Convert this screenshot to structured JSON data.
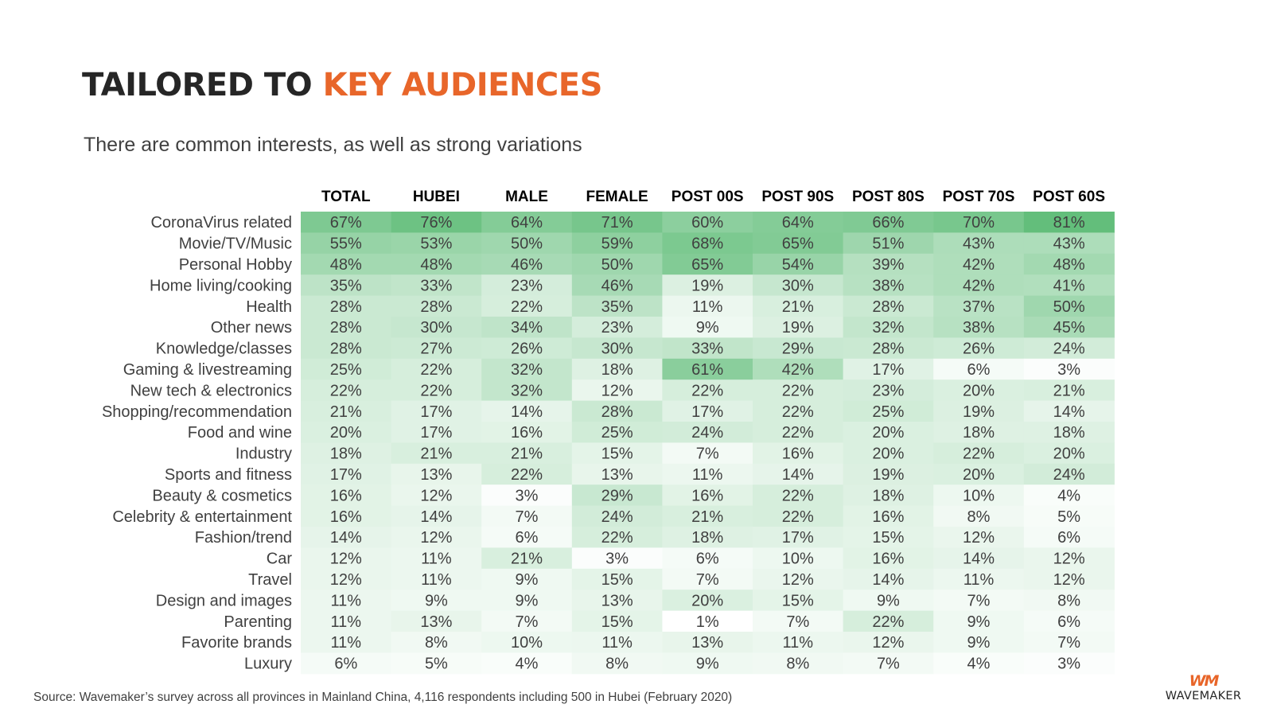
{
  "slide": {
    "title_part1": "TAILORED TO",
    "title_part2": "KEY AUDIENCES",
    "subtitle": "There are common interests, as well as strong variations",
    "source": "Source: Wavemaker’s survey across all provinces in Mainland China, 4,116 respondents including 500 in Hubei (February 2020)",
    "logo_mark": "WM",
    "logo_text": "WAVEMAKER"
  },
  "colors": {
    "title_accent": "#e8662a",
    "heat_low": "#ffffff",
    "heat_high": "#63be7b"
  },
  "chart_data": {
    "type": "heatmap",
    "title": "",
    "value_suffix": "%",
    "value_range": [
      1,
      81
    ],
    "columns": [
      "TOTAL",
      "HUBEI",
      "MALE",
      "FEMALE",
      "POST 00S",
      "POST 90S",
      "POST 80S",
      "POST 70S",
      "POST 60S"
    ],
    "rows": [
      {
        "label": "CoronaVirus related",
        "values": [
          67,
          76,
          64,
          71,
          60,
          64,
          66,
          70,
          81
        ]
      },
      {
        "label": "Movie/TV/Music",
        "values": [
          55,
          53,
          50,
          59,
          68,
          65,
          51,
          43,
          43
        ]
      },
      {
        "label": "Personal Hobby",
        "values": [
          48,
          48,
          46,
          50,
          65,
          54,
          39,
          42,
          48
        ]
      },
      {
        "label": "Home living/cooking",
        "values": [
          35,
          33,
          23,
          46,
          19,
          30,
          38,
          42,
          41
        ]
      },
      {
        "label": "Health",
        "values": [
          28,
          28,
          22,
          35,
          11,
          21,
          28,
          37,
          50
        ]
      },
      {
        "label": "Other news",
        "values": [
          28,
          30,
          34,
          23,
          9,
          19,
          32,
          38,
          45
        ]
      },
      {
        "label": "Knowledge/classes",
        "values": [
          28,
          27,
          26,
          30,
          33,
          29,
          28,
          26,
          24
        ]
      },
      {
        "label": "Gaming & livestreaming",
        "values": [
          25,
          22,
          32,
          18,
          61,
          42,
          17,
          6,
          3
        ]
      },
      {
        "label": "New tech & electronics",
        "values": [
          22,
          22,
          32,
          12,
          22,
          22,
          23,
          20,
          21
        ]
      },
      {
        "label": "Shopping/recommendation",
        "values": [
          21,
          17,
          14,
          28,
          17,
          22,
          25,
          19,
          14
        ]
      },
      {
        "label": "Food and wine",
        "values": [
          20,
          17,
          16,
          25,
          24,
          22,
          20,
          18,
          18
        ]
      },
      {
        "label": "Industry",
        "values": [
          18,
          21,
          21,
          15,
          7,
          16,
          20,
          22,
          20
        ]
      },
      {
        "label": "Sports and fitness",
        "values": [
          17,
          13,
          22,
          13,
          11,
          14,
          19,
          20,
          24
        ]
      },
      {
        "label": "Beauty & cosmetics",
        "values": [
          16,
          12,
          3,
          29,
          16,
          22,
          18,
          10,
          4
        ]
      },
      {
        "label": "Celebrity & entertainment",
        "values": [
          16,
          14,
          7,
          24,
          21,
          22,
          16,
          8,
          5
        ]
      },
      {
        "label": "Fashion/trend",
        "values": [
          14,
          12,
          6,
          22,
          18,
          17,
          15,
          12,
          6
        ]
      },
      {
        "label": "Car",
        "values": [
          12,
          11,
          21,
          3,
          6,
          10,
          16,
          14,
          12
        ]
      },
      {
        "label": "Travel",
        "values": [
          12,
          11,
          9,
          15,
          7,
          12,
          14,
          11,
          12
        ]
      },
      {
        "label": "Design and images",
        "values": [
          11,
          9,
          9,
          13,
          20,
          15,
          9,
          7,
          8
        ]
      },
      {
        "label": "Parenting",
        "values": [
          11,
          13,
          7,
          15,
          1,
          7,
          22,
          9,
          6
        ]
      },
      {
        "label": "Favorite brands",
        "values": [
          11,
          8,
          10,
          11,
          13,
          11,
          12,
          9,
          7
        ]
      },
      {
        "label": "Luxury",
        "values": [
          6,
          5,
          4,
          8,
          9,
          8,
          7,
          4,
          3
        ]
      }
    ]
  }
}
